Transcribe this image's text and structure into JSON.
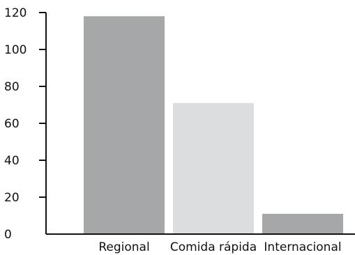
{
  "chart_data": {
    "type": "bar",
    "categories": [
      "Regional",
      "Comida rápida",
      "Internacional"
    ],
    "values": [
      118,
      71,
      11
    ],
    "bar_colors": [
      "#a6a7a9",
      "#dcdddf",
      "#a6a7a9"
    ],
    "yticks": [
      0,
      20,
      40,
      60,
      80,
      100,
      120
    ],
    "ylim": [
      0,
      120
    ],
    "title": "",
    "xlabel": "",
    "ylabel": "",
    "grid": false,
    "legend": false
  }
}
